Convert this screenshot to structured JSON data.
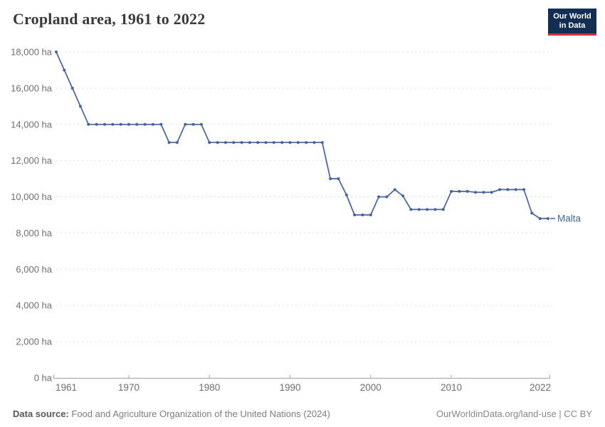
{
  "header": {
    "title": "Cropland area, 1961 to 2022",
    "logo": {
      "line1": "Our World",
      "line2": "in Data",
      "bg_color": "#132e54",
      "accent_color": "#d4303e"
    }
  },
  "chart_data": {
    "type": "line",
    "title": "Cropland area, 1961 to 2022",
    "unit": "ha",
    "grid": "horizontal-dashed",
    "legend_position": "end-of-line-label",
    "line_color": "#44639f",
    "grid_color": "#e0e0e0",
    "axis_color": "#a0a0a0",
    "tick_text_color": "#6e6e6e",
    "ylim": [
      0,
      18000
    ],
    "xlim": [
      1961,
      2022
    ],
    "y_ticks": [
      {
        "value": 0,
        "label": "0 ha"
      },
      {
        "value": 2000,
        "label": "2,000 ha"
      },
      {
        "value": 4000,
        "label": "4,000 ha"
      },
      {
        "value": 6000,
        "label": "6,000 ha"
      },
      {
        "value": 8000,
        "label": "8,000 ha"
      },
      {
        "value": 10000,
        "label": "10,000 ha"
      },
      {
        "value": 12000,
        "label": "12,000 ha"
      },
      {
        "value": 14000,
        "label": "14,000 ha"
      },
      {
        "value": 16000,
        "label": "16,000 ha"
      },
      {
        "value": 18000,
        "label": "18,000 ha"
      }
    ],
    "x_ticks": [
      1961,
      1970,
      1980,
      1990,
      2000,
      2010,
      2022
    ],
    "series": [
      {
        "name": "Malta",
        "x": [
          1961,
          1962,
          1963,
          1964,
          1965,
          1966,
          1967,
          1968,
          1969,
          1970,
          1971,
          1972,
          1973,
          1974,
          1975,
          1976,
          1977,
          1978,
          1979,
          1980,
          1981,
          1982,
          1983,
          1984,
          1985,
          1986,
          1987,
          1988,
          1989,
          1990,
          1991,
          1992,
          1993,
          1994,
          1995,
          1996,
          1997,
          1998,
          1999,
          2000,
          2001,
          2002,
          2003,
          2004,
          2005,
          2006,
          2007,
          2008,
          2009,
          2010,
          2011,
          2012,
          2013,
          2014,
          2015,
          2016,
          2017,
          2018,
          2019,
          2020,
          2021,
          2022
        ],
        "values": [
          18000,
          17000,
          16000,
          15000,
          14000,
          14000,
          14000,
          14000,
          14000,
          14000,
          14000,
          14000,
          14000,
          14000,
          13000,
          13000,
          14000,
          14000,
          14000,
          13000,
          13000,
          13000,
          13000,
          13000,
          13000,
          13000,
          13000,
          13000,
          13000,
          13000,
          13000,
          13000,
          13000,
          13000,
          11000,
          11000,
          10100,
          9000,
          9000,
          9000,
          10000,
          10000,
          10400,
          10050,
          9300,
          9300,
          9300,
          9300,
          9300,
          10300,
          10300,
          10300,
          10250,
          10250,
          10250,
          10400,
          10400,
          10400,
          10400,
          9100,
          8800,
          8800
        ]
      }
    ]
  },
  "footer": {
    "datasource_label": "Data source:",
    "datasource_text": "Food and Agriculture Organization of the United Nations (2024)",
    "credit": "OurWorldinData.org/land-use | CC BY"
  }
}
